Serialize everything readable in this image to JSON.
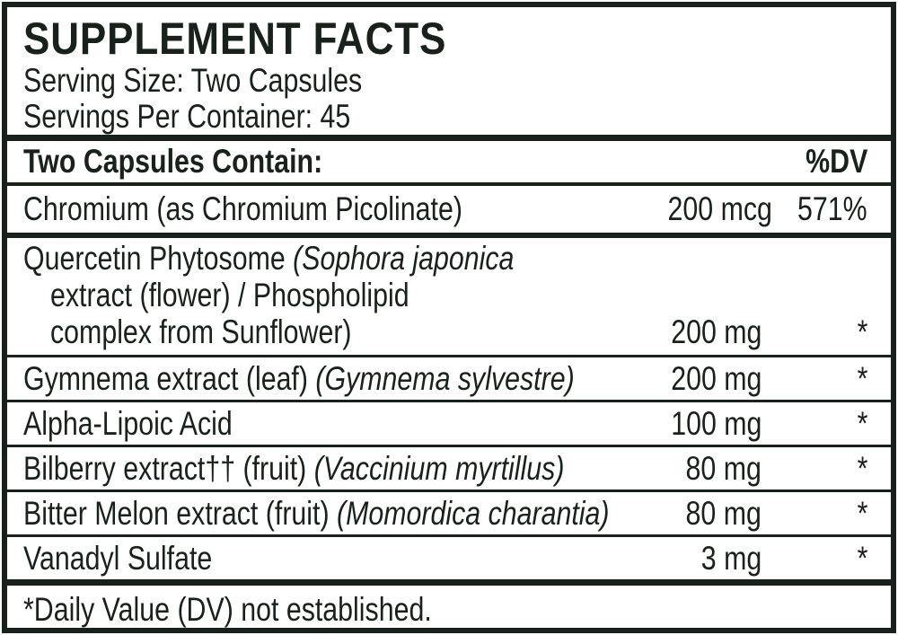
{
  "colors": {
    "ink": "#18211a",
    "background": "#ffffff"
  },
  "header": {
    "title": "SUPPLEMENT FACTS",
    "serving_size": "Serving Size: Two Capsules",
    "servings_per_container": "Servings Per Container: 45"
  },
  "table": {
    "columns_header": {
      "left": "Two Capsules Contain:",
      "right": "%DV"
    },
    "rows": [
      {
        "lines": [
          [
            {
              "text": "Chromium (as Chromium Picolinate)",
              "italic": false
            }
          ]
        ],
        "amount": "200 mcg",
        "dv": "571%",
        "divider_after": "thick6"
      },
      {
        "lines": [
          [
            {
              "text": "Quercetin Phytosome ",
              "italic": false
            },
            {
              "text": "(Sophora japonica",
              "italic": true
            }
          ],
          [
            {
              "text": "extract (flower) / Phospholipid",
              "italic": false
            }
          ],
          [
            {
              "text": "complex from Sunflower)",
              "italic": false
            }
          ]
        ],
        "amount": "200 mg",
        "dv": "*",
        "divider_after": "thin"
      },
      {
        "lines": [
          [
            {
              "text": "Gymnema extract (leaf) ",
              "italic": false
            },
            {
              "text": "(Gymnema sylvestre)",
              "italic": true
            }
          ]
        ],
        "amount": "200 mg",
        "dv": "*",
        "divider_after": "thin"
      },
      {
        "lines": [
          [
            {
              "text": "Alpha-Lipoic Acid",
              "italic": false
            }
          ]
        ],
        "amount": "100 mg",
        "dv": "*",
        "divider_after": "thin"
      },
      {
        "lines": [
          [
            {
              "text": "Bilberry extract†† (fruit) ",
              "italic": false
            },
            {
              "text": "(Vaccinium myrtillus)",
              "italic": true
            }
          ]
        ],
        "amount": "80 mg",
        "dv": "*",
        "divider_after": "thin"
      },
      {
        "lines": [
          [
            {
              "text": "Bitter Melon extract (fruit) ",
              "italic": false
            },
            {
              "text": "(Momordica charantia)",
              "italic": true
            }
          ]
        ],
        "amount": "80 mg",
        "dv": "*",
        "divider_after": "thin"
      },
      {
        "lines": [
          [
            {
              "text": "Vanadyl Sulfate",
              "italic": false
            }
          ]
        ],
        "amount": "3 mg",
        "dv": "*",
        "divider_after": "thick"
      }
    ]
  },
  "footnote": "*Daily Value (DV) not established."
}
